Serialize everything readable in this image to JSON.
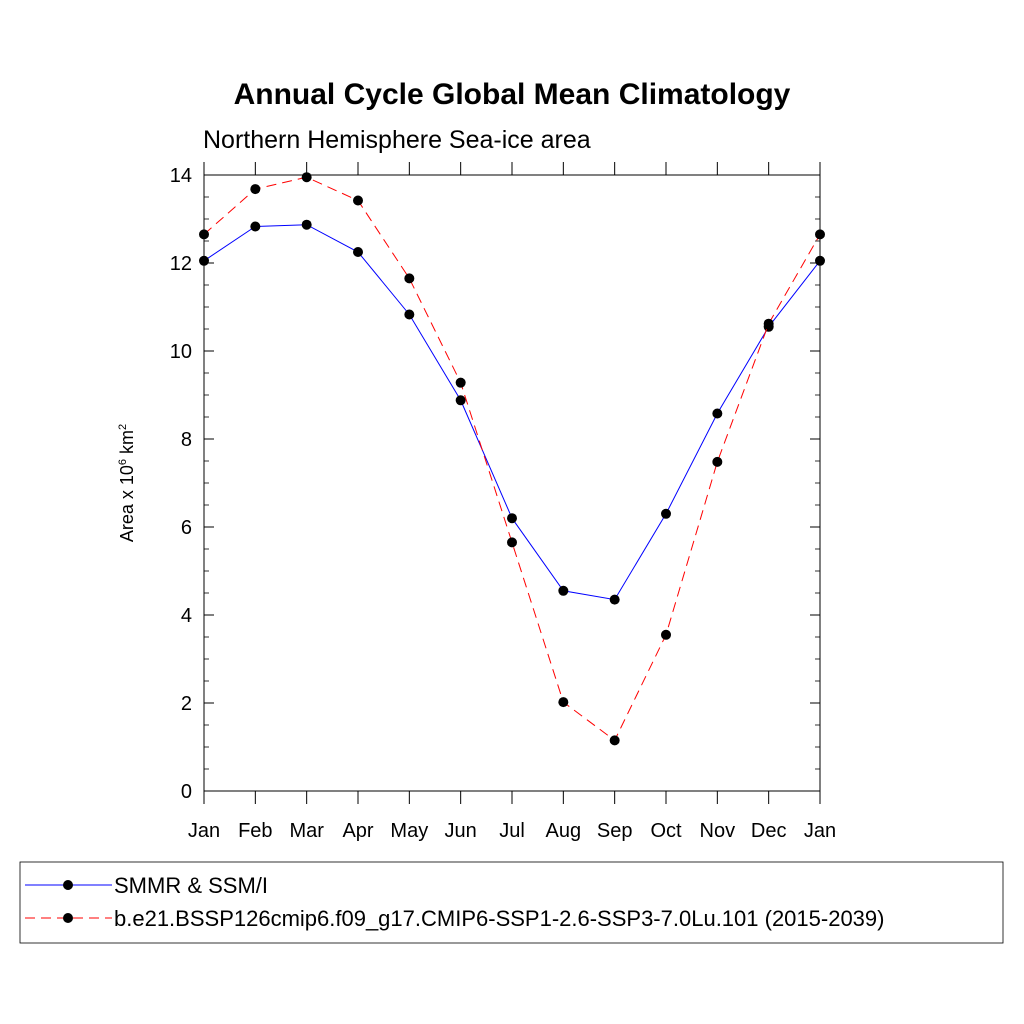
{
  "chart_data": {
    "type": "line",
    "title": "Annual Cycle Global Mean Climatology",
    "subtitle": "Northern Hemisphere Sea-ice area",
    "xlabel": "",
    "ylabel": "Area x 10",
    "ylabel_sup": "6",
    "ylabel_unit": " km",
    "ylabel_unit_sup": "2",
    "categories": [
      "Jan",
      "Feb",
      "Mar",
      "Apr",
      "May",
      "Jun",
      "Jul",
      "Aug",
      "Sep",
      "Oct",
      "Nov",
      "Dec",
      "Jan"
    ],
    "ylim": [
      0,
      14
    ],
    "yticks": [
      0,
      2,
      4,
      6,
      8,
      10,
      12,
      14
    ],
    "grid": false,
    "legend_position": "bottom",
    "series": [
      {
        "name": "SMMR & SSM/I",
        "color": "#0000ff",
        "dash": "solid",
        "marker": "filled-circle",
        "values": [
          12.05,
          12.83,
          12.87,
          12.25,
          10.83,
          8.88,
          6.2,
          4.55,
          4.35,
          6.3,
          8.58,
          10.55,
          12.05
        ]
      },
      {
        "name": "b.e21.BSSP126cmip6.f09_g17.CMIP6-SSP1-2.6-SSP3-7.0Lu.101 (2015-2039)",
        "color": "#ff0000",
        "dash": "dashed",
        "marker": "filled-circle",
        "values": [
          12.65,
          13.68,
          13.95,
          13.42,
          11.65,
          9.28,
          5.65,
          2.02,
          1.15,
          3.55,
          7.48,
          10.62,
          12.65
        ]
      }
    ]
  }
}
